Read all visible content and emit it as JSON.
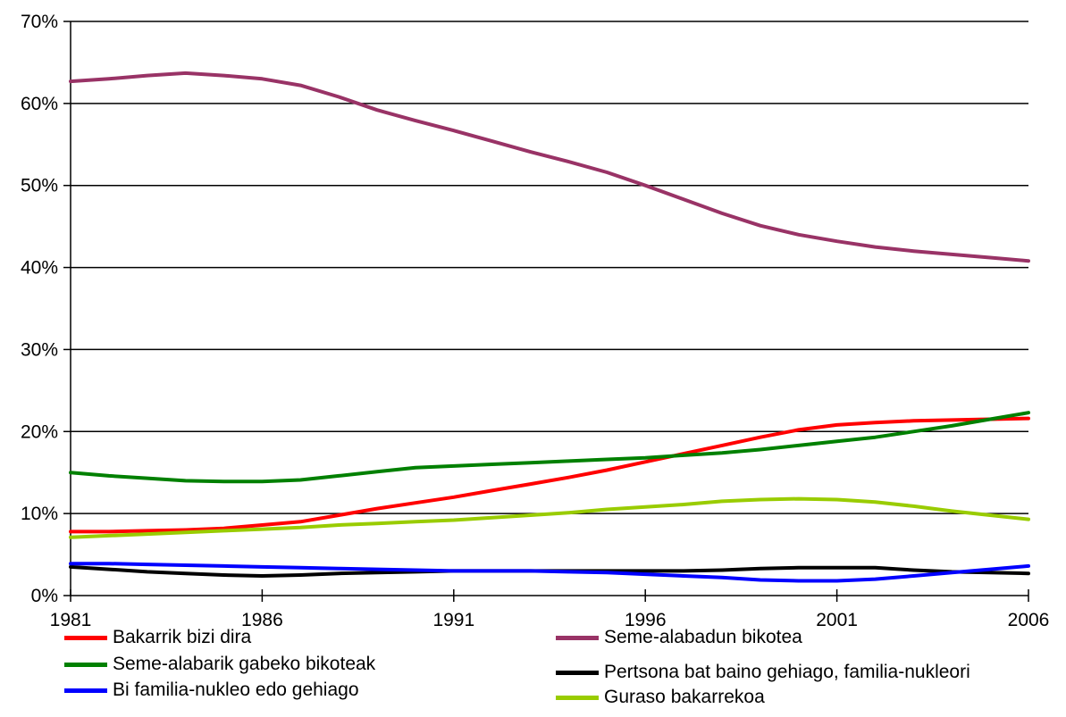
{
  "chart_data": {
    "type": "line",
    "title": "",
    "xlabel": "",
    "ylabel": "",
    "x": [
      1981,
      1982,
      1983,
      1984,
      1985,
      1986,
      1987,
      1988,
      1989,
      1990,
      1991,
      1992,
      1993,
      1994,
      1995,
      1996,
      1997,
      1998,
      1999,
      2000,
      2001,
      2002,
      2003,
      2004,
      2005,
      2006
    ],
    "x_ticks": [
      "1981",
      "1986",
      "1991",
      "1996",
      "2001",
      "2006"
    ],
    "y_ticks": [
      "0%",
      "10%",
      "20%",
      "30%",
      "40%",
      "50%",
      "60%",
      "70%"
    ],
    "ylim": [
      0,
      70
    ],
    "xlim": [
      1981,
      2006
    ],
    "grid": "horizontal",
    "legend_position": "bottom",
    "series": [
      {
        "name": "Bakarrik bizi dira",
        "color": "#ff0000",
        "values": [
          7.8,
          7.8,
          7.9,
          8.0,
          8.2,
          8.6,
          9.0,
          9.8,
          10.6,
          11.3,
          12.0,
          12.8,
          13.6,
          14.4,
          15.3,
          16.3,
          17.3,
          18.3,
          19.3,
          20.2,
          20.8,
          21.1,
          21.3,
          21.4,
          21.5,
          21.6
        ]
      },
      {
        "name": "Seme-alabadun bikotea",
        "color": "#993366",
        "values": [
          62.7,
          63.0,
          63.4,
          63.7,
          63.4,
          63.0,
          62.2,
          60.8,
          59.2,
          57.9,
          56.7,
          55.4,
          54.1,
          52.9,
          51.6,
          50.0,
          48.3,
          46.6,
          45.1,
          44.0,
          43.2,
          42.5,
          42.0,
          41.6,
          41.2,
          40.8
        ]
      },
      {
        "name": "Seme-alabarik gabeko bikoteak",
        "color": "#008000",
        "values": [
          15.0,
          14.6,
          14.3,
          14.0,
          13.9,
          13.9,
          14.1,
          14.6,
          15.1,
          15.6,
          15.8,
          16.0,
          16.2,
          16.4,
          16.6,
          16.8,
          17.1,
          17.4,
          17.8,
          18.3,
          18.8,
          19.3,
          20.0,
          20.7,
          21.5,
          22.3
        ]
      },
      {
        "name": "Pertsona bat baino gehiago, familia-nukleori",
        "color": "#000000",
        "values": [
          3.5,
          3.2,
          2.9,
          2.7,
          2.5,
          2.4,
          2.5,
          2.7,
          2.8,
          2.9,
          3.0,
          3.0,
          3.0,
          3.0,
          3.0,
          3.0,
          3.0,
          3.1,
          3.3,
          3.4,
          3.4,
          3.4,
          3.1,
          2.9,
          2.8,
          2.7
        ]
      },
      {
        "name": "Bi familia-nukleo edo gehiago",
        "color": "#0000ff",
        "values": [
          3.9,
          3.9,
          3.8,
          3.7,
          3.6,
          3.5,
          3.4,
          3.3,
          3.2,
          3.1,
          3.0,
          3.0,
          3.0,
          2.9,
          2.8,
          2.6,
          2.4,
          2.2,
          1.9,
          1.8,
          1.8,
          2.0,
          2.4,
          2.8,
          3.2,
          3.6
        ]
      },
      {
        "name": "Guraso bakarrekoa",
        "color": "#99cc00",
        "values": [
          7.1,
          7.3,
          7.5,
          7.7,
          7.9,
          8.1,
          8.3,
          8.6,
          8.8,
          9.0,
          9.2,
          9.5,
          9.8,
          10.1,
          10.5,
          10.8,
          11.1,
          11.5,
          11.7,
          11.8,
          11.7,
          11.4,
          10.9,
          10.3,
          9.8,
          9.3
        ]
      }
    ]
  }
}
